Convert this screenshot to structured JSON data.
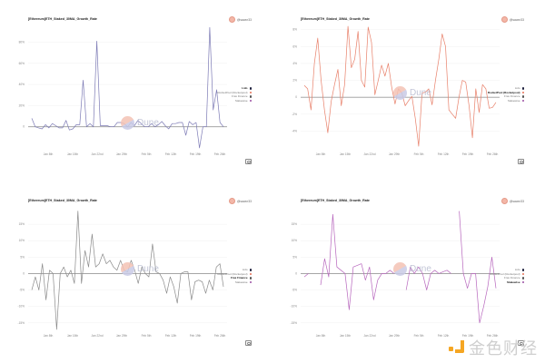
{
  "page": {
    "background": "#ffffff"
  },
  "legend_entries": [
    "Lido",
    "RocketPool (Rocketpool)",
    "Frax Finance",
    "Stakewise"
  ],
  "legend_colors": [
    "#1d1f3c",
    "#e86f55",
    "#555555",
    "#9b4fa3"
  ],
  "author_badge": "@sawcr33",
  "dune_watermark": "Dune",
  "site_watermark": "金色财经",
  "chart_data": [
    {
      "type": "line",
      "title": "[Ethereum]ETH_Staked_30MA_Growth_Rate",
      "series_name": "Lido",
      "color": "#7c7ab5",
      "active_legend": 0,
      "x_ticks": [
        "Jan 8th",
        "Jan 15th",
        "Jan 22nd",
        "Jan 29th",
        "Feb 5th",
        "Feb 12th",
        "Feb 19th",
        "Feb 26th"
      ],
      "y_ticks": [
        0,
        20,
        40,
        60,
        80
      ],
      "y_tick_labels": [
        "0",
        "20%",
        "40%",
        "60%",
        "80%"
      ],
      "ylim": [
        -20,
        95
      ],
      "xlabel": "",
      "ylabel": "",
      "values": [
        8,
        0,
        -1,
        -2,
        2,
        -1,
        3,
        1,
        -1,
        -1,
        6,
        -3,
        -2,
        2,
        2,
        44,
        0,
        3,
        0,
        81,
        1,
        1,
        1,
        0,
        0,
        4,
        4,
        3,
        0,
        4,
        1,
        6,
        3,
        0,
        0,
        3,
        0,
        2,
        5,
        1,
        -2,
        3,
        3,
        4,
        4,
        -8,
        5,
        2,
        4,
        -20,
        0,
        0,
        94,
        16,
        35,
        4,
        0
      ]
    },
    {
      "type": "line",
      "title": "[Ethereum]ETH_Staked_30MA_Growth_Rate",
      "series_name": "RocketPool (Rocketpool)",
      "color": "#e8806a",
      "active_legend": 1,
      "x_ticks": [
        "Jan 8th",
        "Jan 15th",
        "Jan 22nd",
        "Jan 29th",
        "Feb 5th",
        "Feb 12th",
        "Feb 19th",
        "Feb 26th"
      ],
      "y_ticks": [
        -4,
        -2,
        0,
        2,
        4,
        6,
        8
      ],
      "y_tick_labels": [
        "-4%",
        "-2%",
        "0",
        "2%",
        "4%",
        "6%",
        "8%"
      ],
      "ylim": [
        -6,
        8.4
      ],
      "xlabel": "",
      "ylabel": "",
      "values": [
        1.4,
        1,
        -1.5,
        4,
        7,
        2,
        -1.5,
        -4.2,
        -0.5,
        1.5,
        3.3,
        -1,
        1.5,
        8.4,
        3.5,
        4.5,
        7.8,
        2,
        1.2,
        8.3,
        6.5,
        0.3,
        2,
        3.8,
        2.5,
        4,
        1.2,
        -0.8,
        1,
        0.5,
        -1,
        -0.4,
        0.1,
        -2.5,
        -5.8,
        0.5,
        0.6,
        1,
        -0.9,
        2,
        4.5,
        7.5,
        6,
        -1.5,
        -2,
        -2.5,
        0,
        2,
        1.8,
        -1,
        -4.8,
        1,
        -1.8,
        1.5,
        1,
        -1.3,
        -1.2,
        -0.6
      ]
    },
    {
      "type": "line",
      "title": "[Ethereum]ETH_Staked_30MA_Growth_Rate",
      "series_name": "Frax Finance",
      "color": "#8a8a8a",
      "active_legend": 2,
      "x_ticks": [
        "Jan 8th",
        "Jan 15th",
        "Jan 22nd",
        "Jan 29th",
        "Feb 5th",
        "Feb 12th",
        "Feb 19th",
        "Feb 26th"
      ],
      "y_ticks": [
        -15,
        -10,
        -5,
        0,
        5,
        10,
        15
      ],
      "y_tick_labels": [
        "-15%",
        "-10%",
        "-5%",
        "0",
        "5%",
        "10%",
        "15%"
      ],
      "ylim": [
        -17,
        20
      ],
      "xlabel": "",
      "ylabel": "",
      "values": [
        -5,
        -1,
        -5,
        3,
        -8,
        1,
        0,
        -17,
        0,
        2,
        -1,
        1,
        -3,
        19,
        -3,
        7,
        2,
        12,
        2,
        3,
        6,
        3,
        4,
        2,
        1,
        4,
        1,
        0.5,
        4,
        1,
        -3,
        2,
        0,
        -1,
        9,
        0.5,
        0,
        -2,
        -6,
        -1,
        -4,
        -9,
        0,
        0.5,
        0.5,
        -8,
        -2.5,
        -2,
        -2.5,
        -6,
        -2,
        -5,
        2,
        3,
        -4
      ]
    },
    {
      "type": "line",
      "title": "[Ethereum]ETH_Staked_30MA_Growth_Rate",
      "series_name": "Stakewise",
      "color": "#b766bd",
      "active_legend": 3,
      "x_ticks": [
        "Jan 8th",
        "Jan 15th",
        "Jan 22nd",
        "Jan 29th",
        "Feb 5th",
        "Feb 12th",
        "Feb 19th",
        "Feb 26th"
      ],
      "y_ticks": [
        -15,
        -10,
        -5,
        0,
        5,
        10,
        15
      ],
      "y_tick_labels": [
        "-15%",
        "-10%",
        "-5%",
        "0",
        "5%",
        "10%",
        "15%"
      ],
      "ylim": [
        -17,
        20
      ],
      "xlabel": "",
      "ylabel": "",
      "values": [
        -1,
        0,
        null,
        null,
        -3.5,
        4.5,
        -1,
        18,
        2,
        1,
        0,
        -11,
        2,
        2.5,
        3,
        -2,
        2,
        -8,
        -2,
        0,
        0,
        1,
        0,
        null,
        null,
        -5,
        2,
        0,
        2,
        0,
        -5,
        0,
        1,
        0,
        0.5,
        1,
        0,
        null,
        19,
        0,
        -4.5,
        0,
        0,
        -15,
        -10,
        -4,
        5,
        -4.5
      ]
    }
  ]
}
